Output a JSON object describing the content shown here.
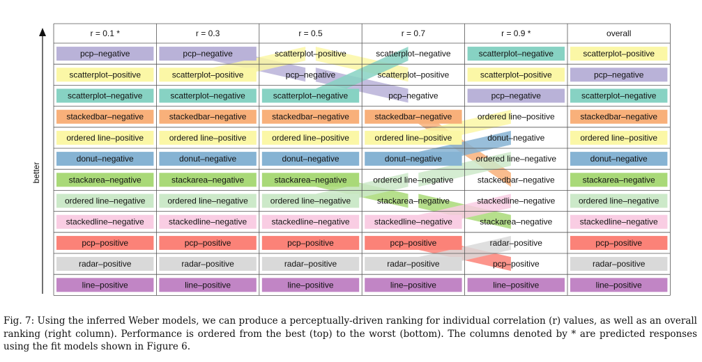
{
  "axis_label": "better",
  "columns": [
    "r = 0.1 *",
    "r = 0.3",
    "r = 0.5",
    "r = 0.7",
    "r = 0.9 *",
    "overall"
  ],
  "categories": [
    {
      "key": "pcp-negative",
      "label": "pcp–negative",
      "color": "#b9b2d8"
    },
    {
      "key": "scatterplot-positive",
      "label": "scatterplot–positive",
      "color": "#fbf7a6"
    },
    {
      "key": "scatterplot-negative",
      "label": "scatterplot–negative",
      "color": "#87d2c3"
    },
    {
      "key": "stackedbar-negative",
      "label": "stackedbar–negative",
      "color": "#f8b07a"
    },
    {
      "key": "ordered-line-positive",
      "label": "ordered line–positive",
      "color": "#fbf7a6"
    },
    {
      "key": "donut-negative",
      "label": "donut–negative",
      "color": "#86b3d3"
    },
    {
      "key": "stackarea-negative",
      "label": "stackarea–negative",
      "color": "#a9d978"
    },
    {
      "key": "ordered-line-negative",
      "label": "ordered line–negative",
      "color": "#cce9c9"
    },
    {
      "key": "stackedline-negative",
      "label": "stackedline–negative",
      "color": "#f9cde3"
    },
    {
      "key": "pcp-positive",
      "label": "pcp–positive",
      "color": "#fb8278"
    },
    {
      "key": "radar-positive",
      "label": "radar–positive",
      "color": "#d9d9d9"
    },
    {
      "key": "line-positive",
      "label": "line–positive",
      "color": "#c185c5"
    }
  ],
  "rankings": [
    [
      "pcp-negative",
      "scatterplot-positive",
      "scatterplot-negative",
      "stackedbar-negative",
      "ordered-line-positive",
      "donut-negative",
      "stackarea-negative",
      "ordered-line-negative",
      "stackedline-negative",
      "pcp-positive",
      "radar-positive",
      "line-positive"
    ],
    [
      "pcp-negative",
      "scatterplot-positive",
      "scatterplot-negative",
      "stackedbar-negative",
      "ordered-line-positive",
      "donut-negative",
      "stackarea-negative",
      "ordered-line-negative",
      "stackedline-negative",
      "pcp-positive",
      "radar-positive",
      "line-positive"
    ],
    [
      "scatterplot-positive",
      "pcp-negative",
      "scatterplot-negative",
      "stackedbar-negative",
      "ordered-line-positive",
      "donut-negative",
      "stackarea-negative",
      "ordered-line-negative",
      "stackedline-negative",
      "pcp-positive",
      "radar-positive",
      "line-positive"
    ],
    [
      "scatterplot-negative",
      "scatterplot-positive",
      "pcp-negative",
      "stackedbar-negative",
      "ordered-line-positive",
      "donut-negative",
      "ordered-line-negative",
      "stackarea-negative",
      "stackedline-negative",
      "pcp-positive",
      "radar-positive",
      "line-positive"
    ],
    [
      "scatterplot-negative",
      "scatterplot-positive",
      "pcp-negative",
      "ordered-line-positive",
      "donut-negative",
      "ordered-line-negative",
      "stackedbar-negative",
      "stackedline-negative",
      "stackarea-negative",
      "radar-positive",
      "pcp-positive",
      "line-positive"
    ],
    [
      "scatterplot-positive",
      "pcp-negative",
      "scatterplot-negative",
      "stackedbar-negative",
      "ordered-line-positive",
      "donut-negative",
      "stackarea-negative",
      "ordered-line-negative",
      "stackedline-negative",
      "pcp-positive",
      "radar-positive",
      "line-positive"
    ]
  ],
  "caption": "Fig. 7: Using the inferred Weber models, we can produce a perceptually-driven ranking for individual correlation (r) values, as well as an overall ranking (right column). Performance is ordered from the best (top) to the worst (bottom). The columns denoted by * are predicted responses using the fit models shown in Figure 6."
}
